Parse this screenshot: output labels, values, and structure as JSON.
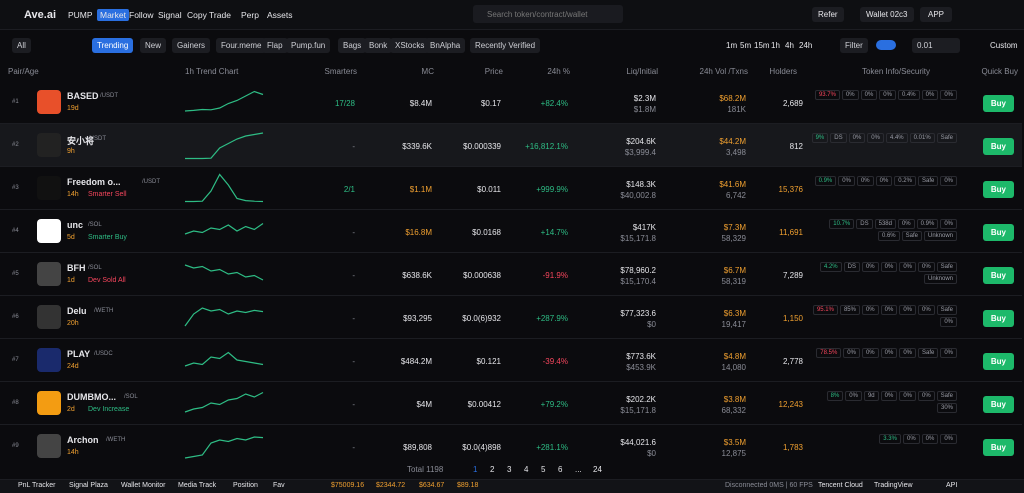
{
  "header": {
    "logo": "Ave.ai",
    "nav": [
      "PUMP",
      "Market",
      "Follow",
      "Signal",
      "Copy Trade",
      "Perp",
      "Assets"
    ],
    "search": "Search token/contract/wallet",
    "refer": "Refer",
    "wallet": "Wallet 02c3",
    "app": "APP"
  },
  "filters": {
    "chips": [
      "All",
      "Trending",
      "New",
      "Gainers",
      "Four.meme",
      "Flap",
      "Pump.fun",
      "Bags",
      "Bonk",
      "XStocks",
      "BnAlpha",
      "Recently Verified"
    ],
    "timeframes": [
      "1m",
      "5m",
      "15m",
      "1h",
      "4h",
      "24h"
    ],
    "filter": "Filter",
    "amount": "0.01",
    "custom": "Custom"
  },
  "columns": [
    "Pair/Age",
    "1h Trend Chart",
    "Smarters",
    "MC",
    "Price",
    "24h %",
    "Liq/Initial",
    "24h Vol /Txns",
    "Holders",
    "Token Info/Security",
    "Quick Buy"
  ],
  "rows": [
    {
      "rank": "#1",
      "name": "BASED",
      "quote": "/USDT",
      "age": "19d",
      "tag": "",
      "smarters": "17/28",
      "mc": "$8.4M",
      "price": "$0.17",
      "change": "+82.4%",
      "liq": "$2.3M",
      "initial": "$1.8M",
      "vol": "$68.2M",
      "txns": "181K",
      "holders": "2,689",
      "security": [
        "93.7%",
        "0%",
        "0%",
        "0%",
        "0.4%",
        "0%",
        "0%"
      ],
      "trend": [
        20,
        22,
        25,
        24,
        30,
        45,
        55,
        70,
        85,
        75
      ],
      "buy": "Buy"
    },
    {
      "rank": "#2",
      "name": "安小将",
      "quote": "/USDT",
      "age": "9h",
      "tag": "",
      "smarters": "-",
      "mc": "$339.6K",
      "price": "$0.000339",
      "change": "+16,812.1%",
      "liq": "$204.6K",
      "initial": "$3,999.4",
      "vol": "$44.2M",
      "txns": "3,498",
      "holders": "812",
      "security": [
        "9%",
        "DS",
        "0%",
        "0%",
        "4.4%",
        "0.01%",
        "Safe"
      ],
      "trend": [
        5,
        5,
        5,
        6,
        40,
        55,
        70,
        80,
        85,
        90
      ],
      "buy": "Buy"
    },
    {
      "rank": "#3",
      "name": "Freedom o...",
      "quote": "/USDT",
      "age": "14h",
      "tag": "Smarter Sell",
      "smarters": "2/1",
      "mc": "$1.1M",
      "price": "$0.011",
      "change": "+999.9%",
      "liq": "$148.3K",
      "initial": "$40,002.8",
      "vol": "$41.6M",
      "txns": "6,742",
      "holders": "15,376",
      "security": [
        "0.9%",
        "0%",
        "0%",
        "0%",
        "0.2%",
        "Safe",
        "0%"
      ],
      "trend": [
        5,
        5,
        6,
        40,
        95,
        60,
        15,
        8,
        6,
        5
      ],
      "buy": "Buy"
    },
    {
      "rank": "#4",
      "name": "unc",
      "quote": "/SOL",
      "age": "5d",
      "tag": "Smarter Buy",
      "smarters": "-",
      "mc": "$16.8M",
      "price": "$0.0168",
      "change": "+14.7%",
      "liq": "$417K",
      "initial": "$15,171.8",
      "vol": "$7.3M",
      "txns": "58,329",
      "holders": "11,691",
      "security": [
        "10.7%",
        "DS",
        "538d",
        "0%",
        "0.9%",
        "0%",
        "0.6%",
        "Safe",
        "Unknown"
      ],
      "trend": [
        40,
        50,
        45,
        60,
        55,
        70,
        50,
        65,
        55,
        75
      ],
      "buy": "Buy"
    },
    {
      "rank": "#5",
      "name": "BFH",
      "quote": "/SOL",
      "age": "1d",
      "tag": "Dev Sold All",
      "smarters": "-",
      "mc": "$638.6K",
      "price": "$0.000638",
      "change": "-91.9%",
      "liq": "$78,960.2",
      "initial": "$15,170.4",
      "vol": "$6.7M",
      "txns": "58,319",
      "holders": "7,289",
      "security": [
        "4.2%",
        "DS",
        "0%",
        "0%",
        "0%",
        "0%",
        "Safe",
        "Unknown"
      ],
      "trend": [
        80,
        70,
        75,
        60,
        65,
        50,
        55,
        40,
        45,
        30
      ],
      "buy": "Buy"
    },
    {
      "rank": "#6",
      "name": "Delu",
      "quote": "/WETH",
      "age": "20h",
      "tag": "",
      "smarters": "-",
      "mc": "$93,295",
      "price": "$0.0(6)932",
      "change": "+287.9%",
      "liq": "$77,323.6",
      "initial": "$0",
      "vol": "$6.3M",
      "txns": "19,417",
      "holders": "1,150",
      "security": [
        "95.1%",
        "85%",
        "0%",
        "0%",
        "0%",
        "0%",
        "Safe",
        "0%"
      ],
      "trend": [
        20,
        60,
        80,
        70,
        75,
        60,
        70,
        65,
        72,
        68
      ],
      "buy": "Buy"
    },
    {
      "rank": "#7",
      "name": "PLAY",
      "quote": "/USDC",
      "age": "24d",
      "tag": "",
      "smarters": "-",
      "mc": "$484.2M",
      "price": "$0.121",
      "change": "-39.4%",
      "liq": "$773.6K",
      "initial": "$453.9K",
      "vol": "$4.8M",
      "txns": "14,080",
      "holders": "2,778",
      "security": [
        "78.5%",
        "0%",
        "0%",
        "0%",
        "0%",
        "Safe",
        "0%"
      ],
      "trend": [
        30,
        40,
        35,
        60,
        55,
        75,
        50,
        45,
        40,
        35
      ],
      "buy": "Buy"
    },
    {
      "rank": "#8",
      "name": "DUMBMO...",
      "quote": "/SOL",
      "age": "2d",
      "tag": "Dev Increase",
      "smarters": "-",
      "mc": "$4M",
      "price": "$0.00412",
      "change": "+79.2%",
      "liq": "$202.2K",
      "initial": "$15,171.8",
      "vol": "$3.8M",
      "txns": "68,332",
      "holders": "12,243",
      "security": [
        "8%",
        "0%",
        "9d",
        "0%",
        "0%",
        "0%",
        "Safe",
        "30%"
      ],
      "trend": [
        20,
        30,
        35,
        50,
        45,
        60,
        65,
        80,
        70,
        85
      ],
      "buy": "Buy"
    },
    {
      "rank": "#9",
      "name": "Archon",
      "quote": "/WETH",
      "age": "14h",
      "tag": "",
      "smarters": "-",
      "mc": "$89,808",
      "price": "$0.0(4)898",
      "change": "+281.1%",
      "liq": "$44,021.6",
      "initial": "$0",
      "vol": "$3.5M",
      "txns": "12,875",
      "holders": "1,783",
      "security": [
        "3.3%",
        "0%",
        "0%",
        "0%"
      ],
      "trend": [
        10,
        15,
        20,
        60,
        70,
        65,
        75,
        70,
        80,
        78
      ],
      "buy": "Buy"
    }
  ],
  "pagination": {
    "total": "Total 1198",
    "pages": [
      "1",
      "2",
      "3",
      "4",
      "5",
      "6",
      "...",
      "24"
    ]
  },
  "footer": {
    "items": [
      "PnL Tracker",
      "Signal Plaza",
      "Wallet Monitor",
      "Media Track",
      "Position",
      "Fav"
    ],
    "prices": [
      "$75009.16",
      "$2344.72",
      "$634.67",
      "$89.18"
    ],
    "status": "Disconnected 0MS | 60 FPS",
    "cloud": "Tencent Cloud",
    "tv": "TradingView",
    "api": "API"
  }
}
